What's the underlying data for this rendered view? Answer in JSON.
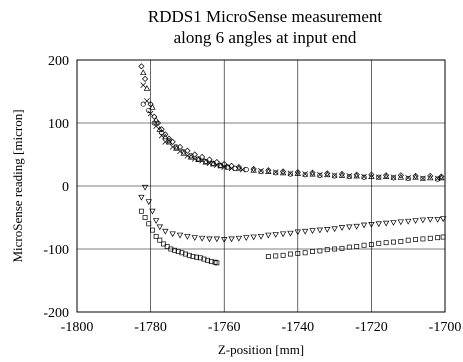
{
  "chart_data": {
    "type": "scatter",
    "title_lines": [
      "RDDS1  MicroSense measurement",
      "along 6 angles at input end"
    ],
    "xlabel": "Z-position [mm]",
    "ylabel": "MicroSense reading [micron]",
    "xlim": [
      -1800,
      -1700
    ],
    "ylim": [
      -200,
      200
    ],
    "x_ticks": [
      -1800,
      -1780,
      -1760,
      -1740,
      -1720,
      -1700
    ],
    "y_ticks": [
      -200,
      -100,
      0,
      100,
      200
    ],
    "x_tick_labels": [
      "-1800",
      "-1780",
      "-1760",
      "-1740",
      "-1720",
      "-1700"
    ],
    "y_tick_labels": [
      "-200",
      "-100",
      "0",
      "100",
      "200"
    ],
    "grid": true,
    "series": [
      {
        "marker": "diamond",
        "x": [
          -1782.5,
          -1781.5,
          -1780,
          -1779,
          -1778,
          -1777,
          -1776,
          -1775,
          -1774,
          -1772,
          -1770,
          -1768,
          -1766,
          -1764,
          -1762,
          -1760,
          -1758,
          -1756,
          -1752,
          -1748,
          -1744,
          -1740,
          -1736,
          -1732,
          -1728,
          -1724,
          -1720,
          -1716,
          -1712,
          -1708,
          -1704,
          -1701
        ],
        "y": [
          190,
          170,
          130,
          110,
          100,
          90,
          82,
          75,
          70,
          62,
          56,
          50,
          46,
          42,
          38,
          35,
          32,
          30,
          27,
          25,
          23,
          22,
          21,
          20,
          19,
          18,
          18,
          17,
          17,
          16,
          16,
          15
        ]
      },
      {
        "marker": "triangle-up",
        "x": [
          -1782,
          -1781,
          -1779.5,
          -1778.5,
          -1777.5,
          -1776,
          -1775,
          -1773,
          -1771,
          -1769,
          -1767,
          -1765,
          -1763,
          -1761,
          -1759,
          -1756,
          -1752,
          -1748,
          -1744,
          -1740,
          -1736,
          -1732,
          -1728,
          -1724,
          -1720,
          -1716,
          -1712,
          -1708,
          -1704,
          -1701
        ],
        "y": [
          180,
          155,
          125,
          105,
          90,
          78,
          70,
          60,
          52,
          46,
          42,
          38,
          35,
          32,
          30,
          28,
          25,
          23,
          21,
          20,
          19,
          18,
          17,
          16,
          15,
          15,
          14,
          14,
          13,
          13
        ]
      },
      {
        "marker": "x",
        "x": [
          -1782,
          -1781,
          -1780,
          -1778.5,
          -1777,
          -1776,
          -1774,
          -1772,
          -1770,
          -1768,
          -1766,
          -1764,
          -1762,
          -1760,
          -1758,
          -1755,
          -1750,
          -1746,
          -1742,
          -1738,
          -1734,
          -1730,
          -1726,
          -1722,
          -1718,
          -1714,
          -1710,
          -1706,
          -1702
        ],
        "y": [
          160,
          135,
          115,
          95,
          80,
          70,
          62,
          55,
          48,
          43,
          40,
          36,
          33,
          30,
          28,
          26,
          24,
          22,
          20,
          19,
          18,
          17,
          16,
          15,
          14,
          14,
          13,
          12,
          12
        ]
      },
      {
        "marker": "circle",
        "x": [
          -1782,
          -1780.5,
          -1779,
          -1777,
          -1775,
          -1773,
          -1771,
          -1769,
          -1767,
          -1765,
          -1763,
          -1761,
          -1759,
          -1757,
          -1754,
          -1750,
          -1746,
          -1742,
          -1738,
          -1734,
          -1730,
          -1726,
          -1722,
          -1718,
          -1714,
          -1710,
          -1706,
          -1702
        ],
        "y": [
          130,
          120,
          100,
          85,
          72,
          62,
          54,
          48,
          43,
          39,
          36,
          33,
          30,
          28,
          26,
          23,
          21,
          19,
          18,
          17,
          16,
          15,
          14,
          14,
          13,
          12,
          12,
          11
        ]
      },
      {
        "marker": "triangle-down",
        "x": [
          -1782.5,
          -1781.5,
          -1780.5,
          -1779.5,
          -1778.5,
          -1777.5,
          -1776,
          -1774,
          -1772,
          -1770,
          -1768,
          -1766,
          -1764,
          -1762,
          -1760,
          -1758,
          -1756,
          -1754,
          -1752,
          -1750,
          -1748,
          -1746,
          -1744,
          -1742,
          -1740,
          -1738,
          -1736,
          -1734,
          -1732,
          -1730,
          -1728,
          -1726,
          -1724,
          -1722,
          -1720,
          -1718,
          -1716,
          -1714,
          -1712,
          -1710,
          -1708,
          -1706,
          -1704,
          -1702,
          -1700.5
        ],
        "y": [
          -18,
          -2,
          -25,
          -40,
          -55,
          -65,
          -72,
          -76,
          -78,
          -80,
          -82,
          -83,
          -84,
          -84,
          -85,
          -84,
          -83,
          -82,
          -81,
          -80,
          -78,
          -77,
          -76,
          -75,
          -73,
          -72,
          -71,
          -70,
          -69,
          -68,
          -66,
          -65,
          -64,
          -62,
          -61,
          -60,
          -59,
          -58,
          -57,
          -56,
          -55,
          -54,
          -53,
          -53,
          -52
        ]
      },
      {
        "marker": "square",
        "x": [
          -1782.5,
          -1781.5,
          -1780.5,
          -1779.5,
          -1778.5,
          -1777.5,
          -1776.5,
          -1775.5,
          -1774.5,
          -1773.5,
          -1772.5,
          -1771.5,
          -1770.5,
          -1769.5,
          -1768.5,
          -1767.5,
          -1766.5,
          -1765.5,
          -1764.5,
          -1763.5,
          -1762.5,
          -1762,
          -1748,
          -1746,
          -1744,
          -1742,
          -1740,
          -1738,
          -1736,
          -1734,
          -1732,
          -1730,
          -1728,
          -1726,
          -1724,
          -1722,
          -1720,
          -1718,
          -1716,
          -1714,
          -1712,
          -1710,
          -1708,
          -1706,
          -1704,
          -1702,
          -1700.5
        ],
        "y": [
          -40,
          -50,
          -60,
          -70,
          -80,
          -86,
          -92,
          -96,
          -100,
          -102,
          -104,
          -106,
          -108,
          -110,
          -112,
          -113,
          -114,
          -116,
          -118,
          -120,
          -121,
          -122,
          -112,
          -111,
          -110,
          -108,
          -107,
          -106,
          -104,
          -103,
          -101,
          -100,
          -99,
          -97,
          -96,
          -94,
          -93,
          -91,
          -90,
          -89,
          -88,
          -86,
          -85,
          -84,
          -83,
          -82,
          -81
        ]
      }
    ]
  }
}
